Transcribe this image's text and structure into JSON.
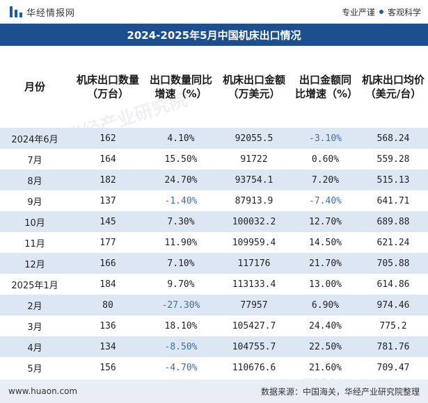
{
  "header": {
    "brand": "华经情报网",
    "slogan_left": "专业严谨",
    "slogan_right": "客观科学"
  },
  "title": "2024-2025年5月中国机床出口情况",
  "table": {
    "columns": [
      "月份",
      "机床出口数量（万台）",
      "出口数量同比增速（%）",
      "机床出口金额（万美元）",
      "出口金额同比增速（%）",
      "机床出口均价（美元/台）"
    ],
    "rows": [
      {
        "month": "2024年6月",
        "qty": "162",
        "qty_yoy": "4.10%",
        "amount": "92055.5",
        "amount_yoy": "-3.10%",
        "price": "568.24"
      },
      {
        "month": "7月",
        "qty": "164",
        "qty_yoy": "15.50%",
        "amount": "91722",
        "amount_yoy": "0.60%",
        "price": "559.28"
      },
      {
        "month": "8月",
        "qty": "182",
        "qty_yoy": "24.70%",
        "amount": "93754.1",
        "amount_yoy": "7.20%",
        "price": "515.13"
      },
      {
        "month": "9月",
        "qty": "137",
        "qty_yoy": "-1.40%",
        "amount": "87913.9",
        "amount_yoy": "-7.40%",
        "price": "641.71"
      },
      {
        "month": "10月",
        "qty": "145",
        "qty_yoy": "7.30%",
        "amount": "100032.2",
        "amount_yoy": "12.70%",
        "price": "689.88"
      },
      {
        "month": "11月",
        "qty": "177",
        "qty_yoy": "11.90%",
        "amount": "109959.4",
        "amount_yoy": "14.50%",
        "price": "621.24"
      },
      {
        "month": "12月",
        "qty": "166",
        "qty_yoy": "7.10%",
        "amount": "117176",
        "amount_yoy": "21.70%",
        "price": "705.88"
      },
      {
        "month": "2025年1月",
        "qty": "184",
        "qty_yoy": "9.70%",
        "amount": "113133.4",
        "amount_yoy": "13.00%",
        "price": "614.86"
      },
      {
        "month": "2月",
        "qty": "80",
        "qty_yoy": "-27.30%",
        "amount": "77957",
        "amount_yoy": "6.90%",
        "price": "974.46"
      },
      {
        "month": "3月",
        "qty": "136",
        "qty_yoy": "18.10%",
        "amount": "105427.7",
        "amount_yoy": "24.40%",
        "price": "775.2"
      },
      {
        "month": "4月",
        "qty": "134",
        "qty_yoy": "-8.50%",
        "amount": "104755.7",
        "amount_yoy": "22.50%",
        "price": "781.76"
      },
      {
        "month": "5月",
        "qty": "156",
        "qty_yoy": "-4.70%",
        "amount": "110676.6",
        "amount_yoy": "21.60%",
        "price": "709.47"
      }
    ]
  },
  "footer": {
    "website": "www.huaon.com",
    "source": "数据来源：中国海关，华经产业研究院整理"
  },
  "watermark": "华经产业研究院",
  "colors": {
    "title_bg": "#1d4f8f",
    "row_stripe": "#dde7f4",
    "negative": "#3a6fb0"
  }
}
